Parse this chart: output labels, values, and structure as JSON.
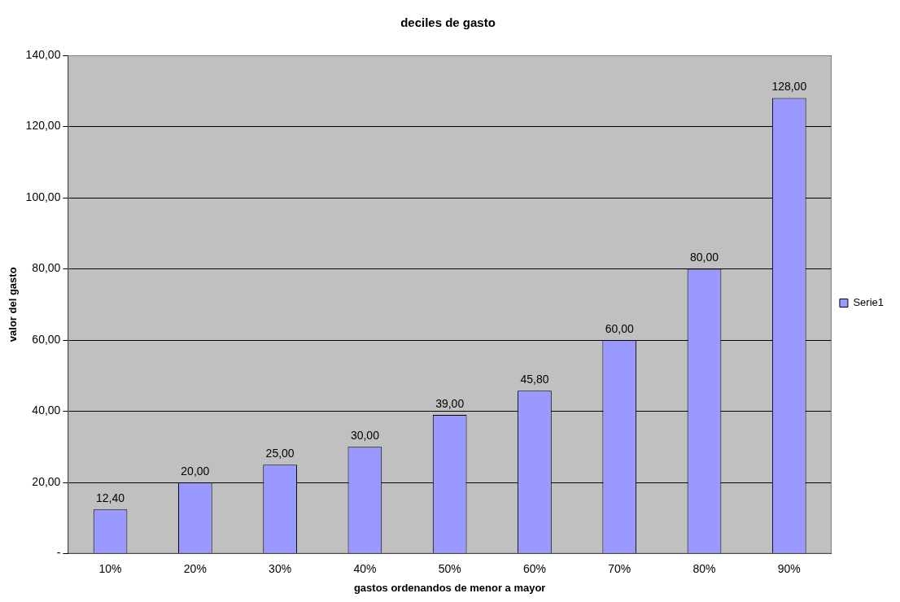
{
  "chart_data": {
    "type": "bar",
    "title": "deciles de gasto",
    "xlabel": "gastos ordenandos de menor a mayor",
    "ylabel": "valor del gasto",
    "categories": [
      "10%",
      "20%",
      "30%",
      "40%",
      "50%",
      "60%",
      "70%",
      "80%",
      "90%"
    ],
    "series": [
      {
        "name": "Serie1",
        "color": "#9999ff",
        "values": [
          12.4,
          20,
          25,
          30,
          39,
          45.8,
          60,
          80,
          128
        ],
        "value_labels": [
          "12,40",
          "20,00",
          "25,00",
          "30,00",
          "39,00",
          "45,80",
          "60,00",
          "80,00",
          "128,00"
        ]
      }
    ],
    "ylim": [
      0,
      140
    ],
    "yticks": [
      {
        "value": 0,
        "label": "-"
      },
      {
        "value": 20,
        "label": "20,00"
      },
      {
        "value": 40,
        "label": "40,00"
      },
      {
        "value": 60,
        "label": "60,00"
      },
      {
        "value": 80,
        "label": "80,00"
      },
      {
        "value": 100,
        "label": "100,00"
      },
      {
        "value": 120,
        "label": "120,00"
      },
      {
        "value": 140,
        "label": "140,00"
      }
    ],
    "grid": "y",
    "legend": "right"
  }
}
